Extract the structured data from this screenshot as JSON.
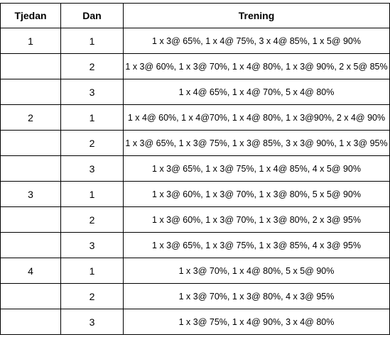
{
  "headers": {
    "week": "Tjedan",
    "day": "Dan",
    "training": "Trening"
  },
  "rows": [
    {
      "week": "1",
      "day": "1",
      "training": "1 x 3@ 65%, 1 x 4@ 75%, 3 x 4@ 85%, 1 x 5@ 90%"
    },
    {
      "week": "",
      "day": "2",
      "training": "1 x 3@ 60%, 1 x 3@ 70%, 1 x 4@ 80%, 1 x 3@ 90%, 2 x 5@ 85%"
    },
    {
      "week": "",
      "day": "3",
      "training": "1 x 4@ 65%, 1 x 4@ 70%, 5 x 4@ 80%"
    },
    {
      "week": "2",
      "day": "1",
      "training": "1 x 4@ 60%, 1 x 4@70%, 1 x 4@ 80%, 1 x 3@90%, 2 x 4@ 90%"
    },
    {
      "week": "",
      "day": "2",
      "training": "1 x 3@ 65%, 1 x 3@ 75%, 1 x 3@ 85%, 3 x 3@ 90%, 1 x 3@ 95%"
    },
    {
      "week": "",
      "day": "3",
      "training": "1 x 3@ 65%, 1 x 3@ 75%, 1 x 4@ 85%, 4 x 5@ 90%"
    },
    {
      "week": "3",
      "day": "1",
      "training": "1 x 3@ 60%, 1 x 3@ 70%, 1 x 3@ 80%, 5 x 5@ 90%"
    },
    {
      "week": "",
      "day": "2",
      "training": "1 x 3@ 60%, 1 x 3@ 70%, 1 x 3@ 80%, 2 x 3@ 95%"
    },
    {
      "week": "",
      "day": "3",
      "training": "1 x 3@ 65%, 1 x 3@ 75%, 1 x 3@ 85%, 4 x 3@ 95%"
    },
    {
      "week": "4",
      "day": "1",
      "training": "1 x 3@ 70%, 1 x 4@ 80%, 5 x 5@ 90%"
    },
    {
      "week": "",
      "day": "2",
      "training": "1 x 3@ 70%, 1 x 3@ 80%, 4 x 3@ 95%"
    },
    {
      "week": "",
      "day": "3",
      "training": "1 x 3@ 75%, 1 x 4@ 90%, 3 x 4@ 80%"
    }
  ]
}
